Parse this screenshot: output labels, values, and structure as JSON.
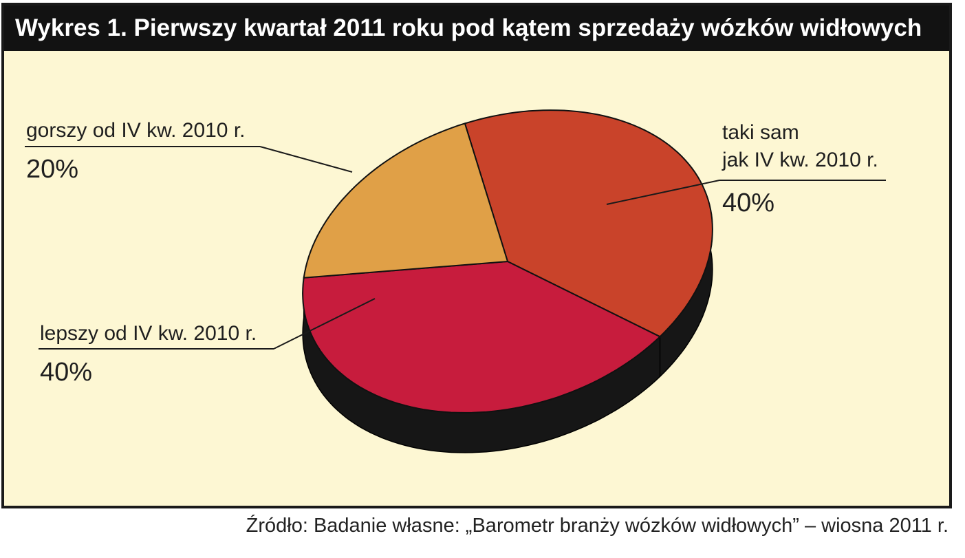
{
  "header": {
    "title": "Wykres 1. Pierwszy kwartał 2011 roku pod kątem sprzedaży wózków widłowych"
  },
  "footer": {
    "source": "Źródło: Badanie własne: „Barometr branży wózków widłowych” – wiosna 2011 r."
  },
  "chart_data": {
    "type": "pie",
    "title": "Wykres 1. Pierwszy kwartał 2011 roku pod kątem sprzedaży wózków widłowych",
    "style": "3d",
    "slices": [
      {
        "lines": [
          "taki sam",
          "jak IV kw. 2010 r."
        ],
        "value": 40,
        "value_label": "40%",
        "color": "#c9432a"
      },
      {
        "lines": [
          "lepszy od IV kw. 2010 r."
        ],
        "value": 40,
        "value_label": "40%",
        "color": "#c71c3d"
      },
      {
        "lines": [
          "gorszy od IV kw. 2010 r."
        ],
        "value": 20,
        "value_label": "20%",
        "color": "#e0a047"
      }
    ],
    "legend": "none"
  },
  "colors": {
    "background": "#fdf7d3",
    "title_bar": "#121212",
    "title_text": "#ffffff",
    "pie_side": "#161616"
  }
}
